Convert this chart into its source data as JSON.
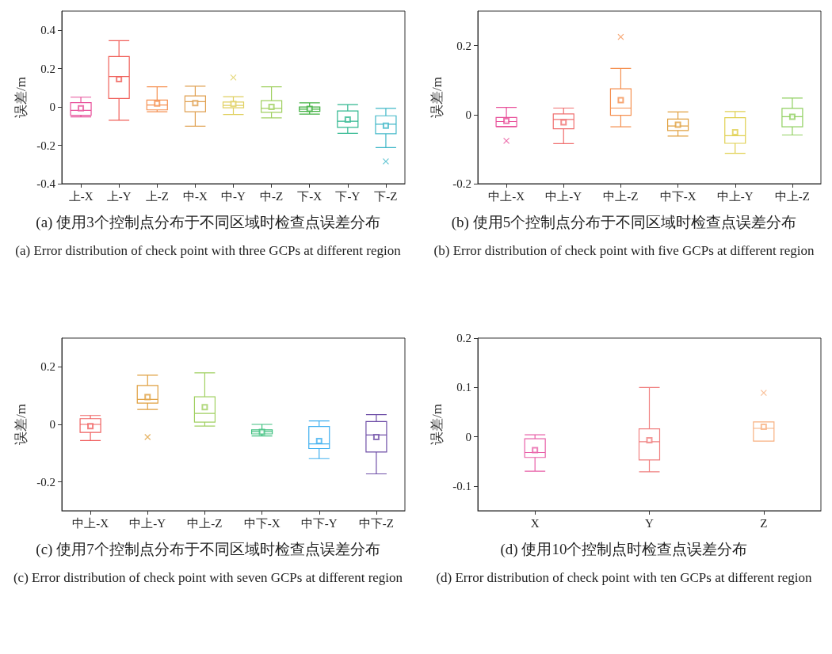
{
  "chart_data": [
    {
      "type": "box",
      "title": "(a) 使用3个控制点分布于不同区域时检查点误差分布",
      "subtitle": "(a) Error distribution of check point with three GCPs at different region",
      "ylabel": "误差/m",
      "categories": [
        "上-X",
        "上-Y",
        "上-Z",
        "中-X",
        "中-Y",
        "中-Z",
        "下-X",
        "下-Y",
        "下-Z"
      ],
      "ylim": [
        -0.4,
        0.5
      ],
      "yticks": [
        -0.4,
        -0.2,
        0,
        0.2,
        0.4
      ],
      "colors": [
        "#e8509a",
        "#f0605a",
        "#f59050",
        "#e0a050",
        "#e0d060",
        "#a0d060",
        "#40b040",
        "#30b890",
        "#40b8c8"
      ],
      "boxes": [
        {
          "low": -0.052,
          "q1": -0.043,
          "median": -0.018,
          "q3": 0.023,
          "high": 0.051,
          "mean": -0.007
        },
        {
          "low": -0.069,
          "q1": 0.044,
          "median": 0.159,
          "q3": 0.263,
          "high": 0.346,
          "mean": 0.145
        },
        {
          "low": -0.025,
          "q1": -0.015,
          "median": 0.01,
          "q3": 0.036,
          "high": 0.105,
          "mean": 0.018
        },
        {
          "low": -0.1,
          "q1": -0.025,
          "median": 0.028,
          "q3": 0.058,
          "high": 0.108,
          "mean": 0.02
        },
        {
          "low": -0.039,
          "q1": -0.004,
          "median": 0.008,
          "q3": 0.026,
          "high": 0.054,
          "mean": 0.016,
          "outliers": [
            0.154
          ]
        },
        {
          "low": -0.057,
          "q1": -0.028,
          "median": -0.007,
          "q3": 0.033,
          "high": 0.105,
          "mean": 0
        },
        {
          "low": -0.037,
          "q1": -0.023,
          "median": -0.011,
          "q3": 0,
          "high": 0.022,
          "mean": -0.01
        },
        {
          "low": -0.137,
          "q1": -0.106,
          "median": -0.074,
          "q3": -0.021,
          "high": 0.012,
          "mean": -0.066
        },
        {
          "low": -0.212,
          "q1": -0.139,
          "median": -0.09,
          "q3": -0.046,
          "high": -0.007,
          "mean": -0.098,
          "outliers": [
            -0.284
          ]
        }
      ]
    },
    {
      "type": "box",
      "title": "(b) 使用5个控制点分布于不同区域时检查点误差分布",
      "subtitle": "(b) Error distribution of check point with five GCPs at different region",
      "ylabel": "误差/m",
      "categories": [
        "中上-X",
        "中上-Y",
        "中上-Z",
        "中下-X",
        "中上-Y",
        "中上-Z"
      ],
      "ylim": [
        -0.2,
        0.3
      ],
      "yticks": [
        -0.2,
        0,
        0.2
      ],
      "colors": [
        "#e8509a",
        "#f07070",
        "#f59050",
        "#e0a040",
        "#e0d050",
        "#90d060"
      ],
      "boxes": [
        {
          "low": -0.035,
          "q1": -0.034,
          "median": -0.02,
          "q3": -0.008,
          "high": 0.021,
          "mean": -0.018,
          "outliers": [
            -0.076
          ]
        },
        {
          "low": -0.084,
          "q1": -0.041,
          "median": -0.014,
          "q3": 0.002,
          "high": 0.019,
          "mean": -0.022
        },
        {
          "low": -0.035,
          "q1": -0.002,
          "median": 0.019,
          "q3": 0.075,
          "high": 0.134,
          "mean": 0.042,
          "outliers": [
            0.225
          ]
        },
        {
          "low": -0.062,
          "q1": -0.046,
          "median": -0.033,
          "q3": -0.013,
          "high": 0.008,
          "mean": -0.029
        },
        {
          "low": -0.112,
          "q1": -0.083,
          "median": -0.061,
          "q3": -0.009,
          "high": 0.009,
          "mean": -0.051
        },
        {
          "low": -0.059,
          "q1": -0.035,
          "median": -0.006,
          "q3": 0.018,
          "high": 0.048,
          "mean": -0.006
        }
      ]
    },
    {
      "type": "box",
      "title": "(c) 使用7个控制点分布于不同区域时检查点误差分布",
      "subtitle": "(c) Error distribution of check point with seven GCPs at different region",
      "ylabel": "误差/m",
      "categories": [
        "中上-X",
        "中上-Y",
        "中上-Z",
        "中下-X",
        "中下-Y",
        "中下-Z"
      ],
      "ylim": [
        -0.3,
        0.3
      ],
      "yticks": [
        -0.2,
        0,
        0.2
      ],
      "colors": [
        "#f06060",
        "#e0a040",
        "#a0d060",
        "#40c080",
        "#40b0f0",
        "#7050a8"
      ],
      "boxes": [
        {
          "low": -0.056,
          "q1": -0.028,
          "median": 0,
          "q3": 0.02,
          "high": 0.031,
          "mean": -0.006
        },
        {
          "low": 0.052,
          "q1": 0.074,
          "median": 0.087,
          "q3": 0.135,
          "high": 0.171,
          "mean": 0.095,
          "outliers": [
            -0.044
          ]
        },
        {
          "low": -0.006,
          "q1": 0.008,
          "median": 0.038,
          "q3": 0.096,
          "high": 0.179,
          "mean": 0.06
        },
        {
          "low": -0.04,
          "q1": -0.033,
          "median": -0.025,
          "q3": -0.019,
          "high": 0,
          "mean": -0.026
        },
        {
          "low": -0.119,
          "q1": -0.084,
          "median": -0.068,
          "q3": -0.007,
          "high": 0.012,
          "mean": -0.058
        },
        {
          "low": -0.172,
          "q1": -0.096,
          "median": -0.037,
          "q3": 0.01,
          "high": 0.034,
          "mean": -0.044
        }
      ]
    },
    {
      "type": "box",
      "title": "(d) 使用10个控制点时检查点误差分布",
      "subtitle": "(d) Error distribution of check point with ten GCPs at different region",
      "ylabel": "误差/m",
      "categories": [
        "X",
        "Y",
        "Z"
      ],
      "ylim": [
        -0.15,
        0.2
      ],
      "yticks": [
        -0.1,
        0,
        0.1,
        0.2
      ],
      "colors": [
        "#e860a8",
        "#f08080",
        "#f8b080"
      ],
      "boxes": [
        {
          "low": -0.07,
          "q1": -0.042,
          "median": -0.032,
          "q3": -0.004,
          "high": 0.004,
          "mean": -0.027
        },
        {
          "low": -0.071,
          "q1": -0.047,
          "median": -0.01,
          "q3": 0.016,
          "high": 0.1,
          "mean": -0.007
        },
        {
          "low": -0.009,
          "q1": -0.009,
          "median": 0.017,
          "q3": 0.03,
          "high": 0.03,
          "mean": 0.02,
          "outliers": [
            0.089
          ]
        }
      ]
    }
  ]
}
